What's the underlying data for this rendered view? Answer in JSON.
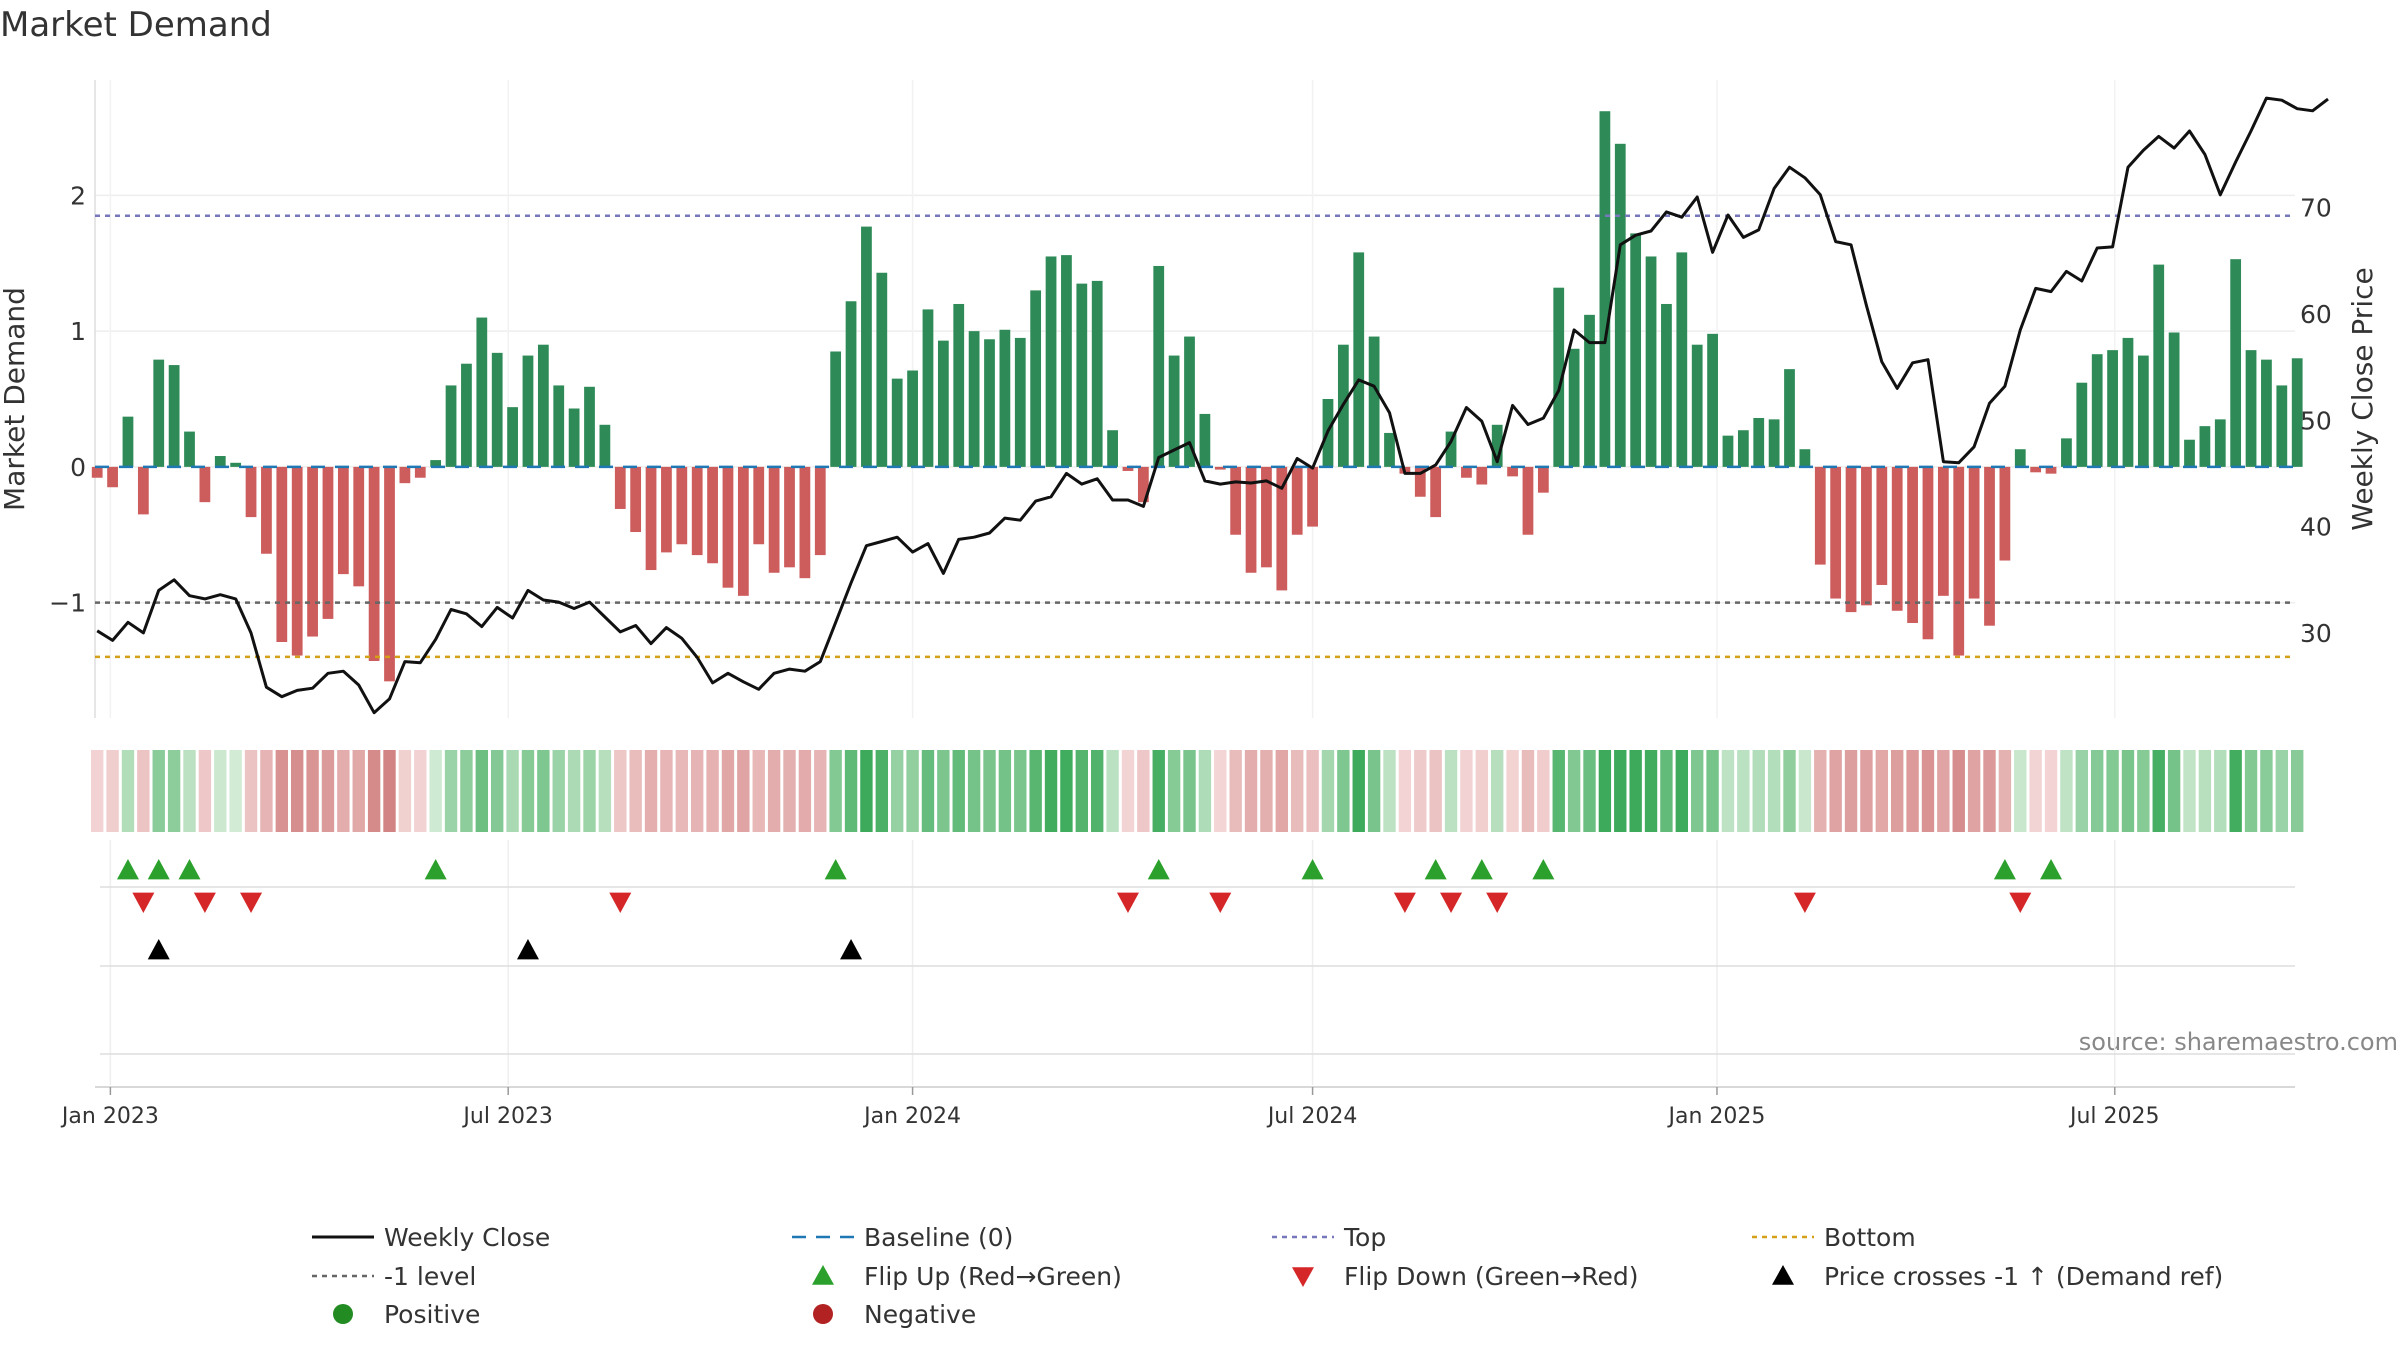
{
  "chart_data": {
    "type": "bar",
    "title": "Market Demand",
    "ylabel": "Market Demand",
    "y2label": "Weekly Close Price",
    "ylim": [
      -1.85,
      2.85
    ],
    "y2lim": [
      22,
      82
    ],
    "yticks": [
      -1,
      0,
      1,
      2
    ],
    "y2ticks": [
      30,
      40,
      50,
      60,
      70
    ],
    "xlim": [
      "2022-12-25",
      "2025-09-21"
    ],
    "xticks": [
      {
        "date": "2023-01-01",
        "label": "Jan 2023"
      },
      {
        "date": "2023-07-01",
        "label": "Jul 2023"
      },
      {
        "date": "2024-01-01",
        "label": "Jan 2024"
      },
      {
        "date": "2024-07-01",
        "label": "Jul 2024"
      },
      {
        "date": "2025-01-01",
        "label": "Jan 2025"
      },
      {
        "date": "2025-07-01",
        "label": "Jul 2025"
      }
    ],
    "start_week": "2022-12-26",
    "reference_lines": {
      "baseline": 0,
      "minus_one": -1,
      "top": 1.85,
      "bottom": -1.4
    },
    "demand_values": [
      -0.08,
      -0.15,
      0.37,
      -0.35,
      0.79,
      0.75,
      0.26,
      -0.26,
      0.08,
      0.03,
      -0.37,
      -0.64,
      -1.29,
      -1.39,
      -1.25,
      -1.12,
      -0.79,
      -0.88,
      -1.43,
      -1.58,
      -0.12,
      -0.08,
      0.05,
      0.6,
      0.76,
      1.1,
      0.84,
      0.44,
      0.82,
      0.9,
      0.6,
      0.43,
      0.59,
      0.31,
      -0.31,
      -0.48,
      -0.76,
      -0.63,
      -0.57,
      -0.65,
      -0.71,
      -0.89,
      -0.95,
      -0.57,
      -0.78,
      -0.74,
      -0.82,
      -0.65,
      0.85,
      1.22,
      1.77,
      1.43,
      0.65,
      0.71,
      1.16,
      0.93,
      1.2,
      1.0,
      0.94,
      1.01,
      0.95,
      1.3,
      1.55,
      1.56,
      1.35,
      1.37,
      0.27,
      -0.03,
      -0.26,
      1.48,
      0.82,
      0.96,
      0.39,
      -0.02,
      -0.5,
      -0.78,
      -0.74,
      -0.91,
      -0.5,
      -0.44,
      0.5,
      0.9,
      1.58,
      0.96,
      0.25,
      -0.05,
      -0.22,
      -0.37,
      0.26,
      -0.08,
      -0.13,
      0.31,
      -0.07,
      -0.5,
      -0.19,
      1.32,
      0.87,
      1.12,
      2.62,
      2.38,
      1.72,
      1.55,
      1.2,
      1.58,
      0.9,
      0.98,
      0.23,
      0.27,
      0.36,
      0.35,
      0.72,
      0.13,
      -0.72,
      -0.97,
      -1.07,
      -1.02,
      -0.87,
      -1.06,
      -1.15,
      -1.27,
      -0.95,
      -1.39,
      -0.97,
      -1.17,
      -0.69,
      0.13,
      -0.04,
      -0.05,
      0.21,
      0.62,
      0.83,
      0.86,
      0.95,
      0.82,
      1.49,
      0.99,
      0.2,
      0.3,
      0.35,
      1.53,
      0.86,
      0.79,
      0.6,
      0.8
    ],
    "close_values": [
      30.2,
      29.3,
      31.0,
      30.0,
      34.0,
      35.0,
      33.5,
      33.2,
      33.6,
      33.2,
      30.0,
      24.9,
      24.0,
      24.6,
      24.8,
      26.2,
      26.4,
      25.1,
      22.5,
      23.8,
      27.3,
      27.2,
      29.4,
      32.2,
      31.8,
      30.6,
      32.4,
      31.4,
      34.0,
      33.1,
      32.9,
      32.3,
      32.9,
      31.5,
      30.1,
      30.7,
      29.0,
      30.5,
      29.5,
      27.7,
      25.3,
      26.2,
      25.4,
      24.7,
      26.2,
      26.6,
      26.4,
      27.3,
      31.0,
      34.7,
      38.2,
      38.6,
      39.0,
      37.6,
      38.4,
      35.6,
      38.8,
      39.0,
      39.4,
      40.8,
      40.6,
      42.4,
      42.8,
      45.0,
      44.0,
      44.5,
      42.5,
      42.5,
      41.9,
      46.5,
      47.2,
      47.9,
      44.3,
      44.0,
      44.2,
      44.1,
      44.3,
      43.6,
      46.4,
      45.5,
      49.0,
      51.5,
      53.8,
      53.2,
      50.7,
      45.0,
      45.0,
      45.8,
      48.0,
      51.2,
      49.9,
      46.1,
      51.4,
      49.6,
      50.2,
      52.8,
      58.5,
      57.3,
      57.3,
      66.5,
      67.4,
      67.8,
      69.6,
      69.1,
      71.0,
      65.8,
      69.3,
      67.2,
      67.9,
      71.8,
      73.8,
      72.8,
      71.2,
      66.8,
      66.5,
      60.8,
      55.5,
      53.0,
      55.4,
      55.7,
      46.1,
      46.0,
      47.5,
      51.6,
      53.2,
      58.5,
      62.4,
      62.1,
      64.0,
      63.1,
      66.2,
      66.3,
      73.8,
      75.4,
      76.7,
      75.6,
      77.2,
      75.0,
      71.2,
      74.3,
      77.2,
      80.3,
      80.1,
      79.3,
      79.1,
      80.2
    ],
    "flip_up_weeks": [
      2,
      4,
      6,
      22,
      48,
      69,
      79,
      87,
      90,
      94,
      124,
      127
    ],
    "flip_down_weeks": [
      3,
      7,
      10,
      34,
      67,
      73,
      85,
      88,
      91,
      111,
      125
    ],
    "price_cross_weeks": [
      4,
      28,
      49
    ],
    "source": "source: sharemaestro.com",
    "legend": [
      {
        "label": "Weekly Close",
        "marker": "line",
        "color": "#111111"
      },
      {
        "label": "Baseline (0)",
        "marker": "dash",
        "color": "#1f77b4"
      },
      {
        "label": "Top",
        "marker": "dot",
        "color": "#7777bb"
      },
      {
        "label": "Bottom",
        "marker": "dot",
        "color": "#d4a017"
      },
      {
        "label": "-1 level",
        "marker": "dot",
        "color": "#666666"
      },
      {
        "label": "Flip Up (Red→Green)",
        "marker": "triangle-up",
        "color": "#2ca02c"
      },
      {
        "label": "Flip Down (Green→Red)",
        "marker": "triangle-down",
        "color": "#d62728"
      },
      {
        "label": "Price crosses -1 ↑ (Demand ref)",
        "marker": "triangle-up",
        "color": "#000000"
      },
      {
        "label": "Positive",
        "marker": "circle",
        "color": "#228b22"
      },
      {
        "label": "Negative",
        "marker": "circle",
        "color": "#b22222"
      }
    ],
    "legend_placement": "bottom",
    "grid": true
  },
  "colors": {
    "positive": "#2e8b57",
    "negative": "#cd5c5c",
    "price": "#111111",
    "baseline": "#1f77b4",
    "top": "#7777bb",
    "bottom": "#d4a017",
    "minus_one": "#666666",
    "flip_up": "#2ca02c",
    "flip_down": "#d62728",
    "price_cross": "#000000"
  }
}
